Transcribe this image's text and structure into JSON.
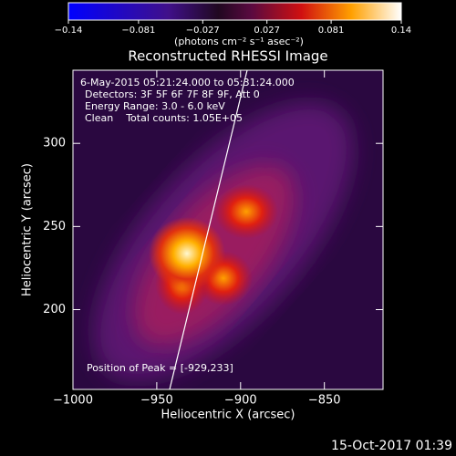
{
  "chart_data": {
    "type": "image",
    "title": "Reconstructed RHESSI Image",
    "x_label": "Heliocentric X (arcsec)",
    "y_label": "Heliocentric Y (arcsec)",
    "xlim": [
      -1000,
      -815
    ],
    "xticks": [
      {
        "value": -1000,
        "label": "−1000"
      },
      {
        "value": -950,
        "label": "−950"
      },
      {
        "value": -900,
        "label": "−900"
      },
      {
        "value": -850,
        "label": "−850"
      }
    ],
    "ylim": [
      152,
      344
    ],
    "yticks": [
      200,
      250,
      300
    ],
    "colorbar": {
      "label": "(photons cm⁻² s⁻¹ asec⁻²)",
      "lim": [
        -0.14,
        0.14
      ],
      "ticks": [
        {
          "value": -0.14,
          "label": "−0.14"
        },
        {
          "value": -0.081,
          "label": "−0.081"
        },
        {
          "value": -0.027,
          "label": "−0.027"
        },
        0.027,
        0.081,
        0.14
      ]
    },
    "annotations": [
      "6-May-2015 05:21:24.000 to 05:31:24.000",
      "Detectors: 3F 5F 6F 7F 8F 9F, Att 0",
      "Energy Range: 3.0 - 6.0 keV",
      "Clean    Total counts: 1.05E+05"
    ],
    "peak_label": "Position of Peak = [-929,233]",
    "timestamp": "15-Oct-2017 01:39"
  }
}
